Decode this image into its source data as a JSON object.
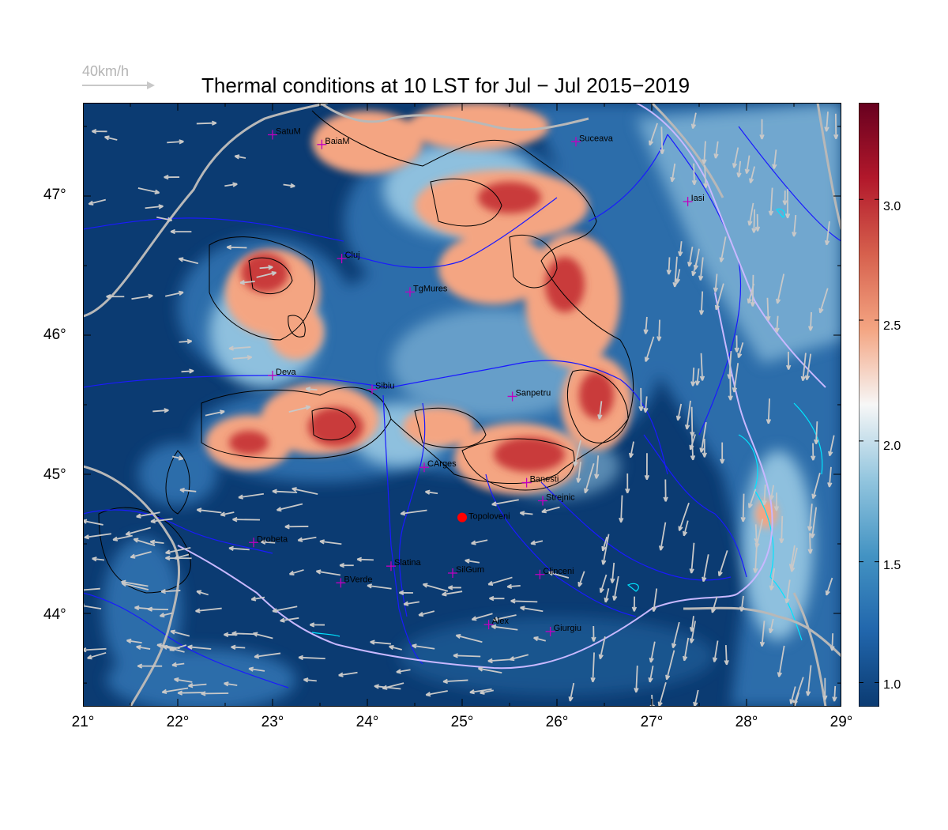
{
  "title": "Thermal conditions at 10 LST for Jul − Jul  2015−2019",
  "reference_vector": {
    "label": "40km/h",
    "speed_kmh": 40
  },
  "map": {
    "lon_range": [
      21,
      29
    ],
    "lat_range": [
      43.33,
      47.67
    ],
    "x_ticks": [
      "21°",
      "22°",
      "23°",
      "24°",
      "25°",
      "26°",
      "27°",
      "28°",
      "29°"
    ],
    "y_ticks": [
      {
        "lat": 44,
        "label": "44°"
      },
      {
        "lat": 45,
        "label": "45°"
      },
      {
        "lat": 46,
        "label": "46°"
      },
      {
        "lat": 47,
        "label": "47°"
      }
    ]
  },
  "colorbar": {
    "min": 0.9,
    "max": 3.4,
    "ticks": [
      "1.0",
      "1.5",
      "2.0",
      "2.5",
      "3.0"
    ],
    "colors": [
      "#0b3b72",
      "#2166ac",
      "#4393c3",
      "#92c5de",
      "#f7f7f7",
      "#f4a582",
      "#d6604d",
      "#b2182b",
      "#67001f"
    ]
  },
  "cities": [
    {
      "name": "SatuM",
      "lon": 23.0,
      "lat": 47.44
    },
    {
      "name": "BaiaM",
      "lon": 23.52,
      "lat": 47.37
    },
    {
      "name": "Suceava",
      "lon": 26.2,
      "lat": 47.39
    },
    {
      "name": "Iasi",
      "lon": 27.38,
      "lat": 46.96
    },
    {
      "name": "Cluj",
      "lon": 23.73,
      "lat": 46.55
    },
    {
      "name": "TgMures",
      "lon": 24.45,
      "lat": 46.31
    },
    {
      "name": "Deva",
      "lon": 23.0,
      "lat": 45.71
    },
    {
      "name": "Sibiu",
      "lon": 24.05,
      "lat": 45.61
    },
    {
      "name": "Sanpetru",
      "lon": 25.53,
      "lat": 45.56
    },
    {
      "name": "CArges",
      "lon": 24.6,
      "lat": 45.05
    },
    {
      "name": "Banesti",
      "lon": 25.68,
      "lat": 44.94
    },
    {
      "name": "Strejnic",
      "lon": 25.85,
      "lat": 44.81
    },
    {
      "name": "Drobeta",
      "lon": 22.8,
      "lat": 44.51
    },
    {
      "name": "Slatina",
      "lon": 24.25,
      "lat": 44.34
    },
    {
      "name": "SilGum",
      "lon": 24.9,
      "lat": 44.29
    },
    {
      "name": "BVerde",
      "lon": 23.72,
      "lat": 44.22
    },
    {
      "name": "Clinceni",
      "lon": 25.82,
      "lat": 44.28
    },
    {
      "name": "Alex",
      "lon": 25.28,
      "lat": 43.92
    },
    {
      "name": "Giurgiu",
      "lon": 25.93,
      "lat": 43.87
    }
  ],
  "highlight_site": {
    "name": "Topoloveni",
    "lon": 25.0,
    "lat": 44.69,
    "color": "#ff0000"
  },
  "colors": {
    "city_marker": "#c000c0",
    "rivers": "#1a1aff",
    "borders": "#b8b8b8",
    "contours": "#000000",
    "lakes": "#00e5ff",
    "wind_arrows": "#c8c8c8"
  }
}
